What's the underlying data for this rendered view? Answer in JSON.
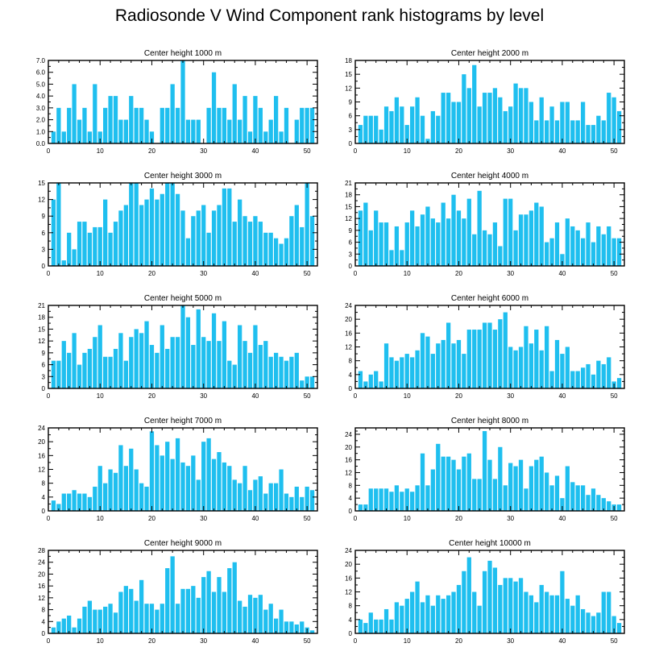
{
  "title": "Radiosonde V Wind Component rank histograms by level",
  "colors": {
    "bar": "#1fbfef",
    "axis": "#000000",
    "background": "#ffffff"
  },
  "chart_data": [
    {
      "type": "bar",
      "title": "Center height 1000 m",
      "xlabel": "",
      "ylabel": "",
      "xlim": [
        0,
        52
      ],
      "ylim": [
        0,
        7
      ],
      "xticks": [
        0,
        10,
        20,
        30,
        40,
        50
      ],
      "yticks": [
        0,
        1,
        2,
        3,
        4,
        5,
        6,
        7
      ],
      "ytick_labels": [
        "0.0",
        "1.0",
        "2.0",
        "3.0",
        "4.0",
        "5.0",
        "6.0",
        "7.0"
      ],
      "x": [
        1,
        2,
        3,
        4,
        5,
        6,
        7,
        8,
        9,
        10,
        11,
        12,
        13,
        14,
        15,
        16,
        17,
        18,
        19,
        20,
        21,
        22,
        23,
        24,
        25,
        26,
        27,
        28,
        29,
        30,
        31,
        32,
        33,
        34,
        35,
        36,
        37,
        38,
        39,
        40,
        41,
        42,
        43,
        44,
        45,
        46,
        47,
        48,
        49,
        50,
        51
      ],
      "values": [
        1,
        3,
        1,
        3,
        5,
        2,
        3,
        1,
        5,
        1,
        3,
        4,
        4,
        2,
        2,
        4,
        3,
        3,
        2,
        1,
        0,
        3,
        3,
        5,
        3,
        7,
        2,
        2,
        2,
        0,
        3,
        6,
        3,
        3,
        2,
        5,
        2,
        4,
        1,
        4,
        3,
        1,
        2,
        4,
        1,
        3,
        0,
        2,
        3,
        3,
        3
      ]
    },
    {
      "type": "bar",
      "title": "Center height 2000 m",
      "xlabel": "",
      "ylabel": "",
      "xlim": [
        0,
        52
      ],
      "ylim": [
        0,
        18
      ],
      "xticks": [
        0,
        10,
        20,
        30,
        40,
        50
      ],
      "yticks": [
        0,
        3,
        6,
        9,
        12,
        15,
        18
      ],
      "ytick_labels": [
        "0",
        "3",
        "6",
        "9",
        "12",
        "15",
        "18"
      ],
      "x": [
        1,
        2,
        3,
        4,
        5,
        6,
        7,
        8,
        9,
        10,
        11,
        12,
        13,
        14,
        15,
        16,
        17,
        18,
        19,
        20,
        21,
        22,
        23,
        24,
        25,
        26,
        27,
        28,
        29,
        30,
        31,
        32,
        33,
        34,
        35,
        36,
        37,
        38,
        39,
        40,
        41,
        42,
        43,
        44,
        45,
        46,
        47,
        48,
        49,
        50,
        51
      ],
      "values": [
        4,
        6,
        6,
        6,
        3,
        8,
        7,
        10,
        8,
        4,
        8,
        10,
        6,
        1,
        7,
        6,
        11,
        11,
        9,
        9,
        15,
        12,
        17,
        8,
        11,
        11,
        12,
        10,
        7,
        8,
        13,
        12,
        12,
        9,
        5,
        10,
        5,
        8,
        5,
        9,
        9,
        5,
        5,
        9,
        4,
        4,
        6,
        5,
        11,
        10,
        7
      ]
    },
    {
      "type": "bar",
      "title": "Center height 3000 m",
      "xlabel": "",
      "ylabel": "",
      "xlim": [
        0,
        52
      ],
      "ylim": [
        0,
        15
      ],
      "xticks": [
        0,
        10,
        20,
        30,
        40,
        50
      ],
      "yticks": [
        0,
        3,
        6,
        9,
        12,
        15
      ],
      "ytick_labels": [
        "0",
        "3",
        "6",
        "9",
        "12",
        "15"
      ],
      "x": [
        1,
        2,
        3,
        4,
        5,
        6,
        7,
        8,
        9,
        10,
        11,
        12,
        13,
        14,
        15,
        16,
        17,
        18,
        19,
        20,
        21,
        22,
        23,
        24,
        25,
        26,
        27,
        28,
        29,
        30,
        31,
        32,
        33,
        34,
        35,
        36,
        37,
        38,
        39,
        40,
        41,
        42,
        43,
        44,
        45,
        46,
        47,
        48,
        49,
        50,
        51
      ],
      "values": [
        12,
        15,
        1,
        6,
        3,
        8,
        8,
        6,
        7,
        7,
        12,
        6,
        8,
        10,
        11,
        15,
        15,
        11,
        12,
        14,
        12,
        13,
        15,
        15,
        13,
        10,
        5,
        9,
        10,
        11,
        6,
        10,
        11,
        14,
        14,
        8,
        12,
        9,
        8,
        9,
        8,
        6,
        6,
        5,
        4,
        5,
        9,
        11,
        7,
        15,
        9
      ]
    },
    {
      "type": "bar",
      "title": "Center height 4000 m",
      "xlabel": "",
      "ylabel": "",
      "xlim": [
        0,
        52
      ],
      "ylim": [
        0,
        21
      ],
      "xticks": [
        0,
        10,
        20,
        30,
        40,
        50
      ],
      "yticks": [
        0,
        3,
        6,
        9,
        12,
        15,
        18,
        21
      ],
      "ytick_labels": [
        "0",
        "3",
        "6",
        "9",
        "12",
        "15",
        "18",
        "21"
      ],
      "x": [
        1,
        2,
        3,
        4,
        5,
        6,
        7,
        8,
        9,
        10,
        11,
        12,
        13,
        14,
        15,
        16,
        17,
        18,
        19,
        20,
        21,
        22,
        23,
        24,
        25,
        26,
        27,
        28,
        29,
        30,
        31,
        32,
        33,
        34,
        35,
        36,
        37,
        38,
        39,
        40,
        41,
        42,
        43,
        44,
        45,
        46,
        47,
        48,
        49,
        50,
        51
      ],
      "values": [
        14,
        16,
        9,
        14,
        11,
        11,
        4,
        10,
        4,
        11,
        14,
        10,
        13,
        15,
        12,
        11,
        16,
        12,
        18,
        14,
        12,
        17,
        8,
        19,
        9,
        8,
        11,
        5,
        17,
        17,
        9,
        13,
        13,
        14,
        16,
        15,
        6,
        7,
        11,
        3,
        12,
        10,
        9,
        7,
        11,
        6,
        10,
        8,
        10,
        7,
        7
      ]
    },
    {
      "type": "bar",
      "title": "Center height 5000 m",
      "xlabel": "",
      "ylabel": "",
      "xlim": [
        0,
        52
      ],
      "ylim": [
        0,
        21
      ],
      "xticks": [
        0,
        10,
        20,
        30,
        40,
        50
      ],
      "yticks": [
        0,
        3,
        6,
        9,
        12,
        15,
        18,
        21
      ],
      "ytick_labels": [
        "0",
        "3",
        "6",
        "9",
        "12",
        "15",
        "18",
        "21"
      ],
      "x": [
        1,
        2,
        3,
        4,
        5,
        6,
        7,
        8,
        9,
        10,
        11,
        12,
        13,
        14,
        15,
        16,
        17,
        18,
        19,
        20,
        21,
        22,
        23,
        24,
        25,
        26,
        27,
        28,
        29,
        30,
        31,
        32,
        33,
        34,
        35,
        36,
        37,
        38,
        39,
        40,
        41,
        42,
        43,
        44,
        45,
        46,
        47,
        48,
        49,
        50,
        51
      ],
      "values": [
        7,
        7,
        12,
        9,
        14,
        6,
        9,
        10,
        13,
        16,
        8,
        8,
        10,
        14,
        7,
        13,
        15,
        14,
        17,
        11,
        9,
        16,
        10,
        13,
        13,
        21,
        18,
        11,
        20,
        13,
        12,
        19,
        12,
        17,
        7,
        6,
        16,
        12,
        9,
        16,
        11,
        12,
        8,
        9,
        8,
        7,
        8,
        9,
        2,
        3,
        3
      ]
    },
    {
      "type": "bar",
      "title": "Center height 6000 m",
      "xlabel": "",
      "ylabel": "",
      "xlim": [
        0,
        52
      ],
      "ylim": [
        0,
        24
      ],
      "xticks": [
        0,
        10,
        20,
        30,
        40,
        50
      ],
      "yticks": [
        0,
        4,
        8,
        12,
        16,
        20,
        24
      ],
      "ytick_labels": [
        "0",
        "4",
        "8",
        "12",
        "16",
        "20",
        "24"
      ],
      "x": [
        1,
        2,
        3,
        4,
        5,
        6,
        7,
        8,
        9,
        10,
        11,
        12,
        13,
        14,
        15,
        16,
        17,
        18,
        19,
        20,
        21,
        22,
        23,
        24,
        25,
        26,
        27,
        28,
        29,
        30,
        31,
        32,
        33,
        34,
        35,
        36,
        37,
        38,
        39,
        40,
        41,
        42,
        43,
        44,
        45,
        46,
        47,
        48,
        49,
        50,
        51
      ],
      "values": [
        5,
        2,
        4,
        5,
        2,
        13,
        9,
        8,
        9,
        10,
        9,
        11,
        16,
        15,
        10,
        13,
        14,
        19,
        13,
        14,
        10,
        17,
        17,
        17,
        19,
        19,
        17,
        20,
        22,
        12,
        11,
        12,
        18,
        13,
        17,
        11,
        18,
        5,
        14,
        10,
        12,
        5,
        5,
        6,
        7,
        4,
        8,
        7,
        9,
        2,
        3
      ]
    },
    {
      "type": "bar",
      "title": "Center height 7000 m",
      "xlabel": "",
      "ylabel": "",
      "xlim": [
        0,
        52
      ],
      "ylim": [
        0,
        24
      ],
      "xticks": [
        0,
        10,
        20,
        30,
        40,
        50
      ],
      "yticks": [
        0,
        4,
        8,
        12,
        16,
        20,
        24
      ],
      "ytick_labels": [
        "0",
        "4",
        "8",
        "12",
        "16",
        "20",
        "24"
      ],
      "x": [
        1,
        2,
        3,
        4,
        5,
        6,
        7,
        8,
        9,
        10,
        11,
        12,
        13,
        14,
        15,
        16,
        17,
        18,
        19,
        20,
        21,
        22,
        23,
        24,
        25,
        26,
        27,
        28,
        29,
        30,
        31,
        32,
        33,
        34,
        35,
        36,
        37,
        38,
        39,
        40,
        41,
        42,
        43,
        44,
        45,
        46,
        47,
        48,
        49,
        50,
        51
      ],
      "values": [
        3,
        2,
        5,
        5,
        6,
        5,
        5,
        4,
        7,
        13,
        8,
        12,
        11,
        19,
        13,
        18,
        12,
        8,
        7,
        23,
        19,
        16,
        20,
        15,
        21,
        14,
        13,
        16,
        9,
        20,
        21,
        15,
        17,
        14,
        13,
        9,
        8,
        13,
        6,
        9,
        10,
        5,
        8,
        8,
        12,
        5,
        4,
        7,
        4,
        7,
        6
      ]
    },
    {
      "type": "bar",
      "title": "Center height 8000 m",
      "xlabel": "",
      "ylabel": "",
      "xlim": [
        0,
        52
      ],
      "ylim": [
        0,
        26
      ],
      "xticks": [
        0,
        10,
        20,
        30,
        40,
        50
      ],
      "yticks": [
        0,
        4,
        8,
        12,
        16,
        20,
        24
      ],
      "ytick_labels": [
        "0",
        "4",
        "8",
        "12",
        "16",
        "20",
        "24"
      ],
      "x": [
        1,
        2,
        3,
        4,
        5,
        6,
        7,
        8,
        9,
        10,
        11,
        12,
        13,
        14,
        15,
        16,
        17,
        18,
        19,
        20,
        21,
        22,
        23,
        24,
        25,
        26,
        27,
        28,
        29,
        30,
        31,
        32,
        33,
        34,
        35,
        36,
        37,
        38,
        39,
        40,
        41,
        42,
        43,
        44,
        45,
        46,
        47,
        48,
        49,
        50,
        51
      ],
      "values": [
        2,
        2,
        7,
        7,
        7,
        7,
        6,
        8,
        6,
        7,
        6,
        8,
        18,
        8,
        13,
        21,
        17,
        17,
        16,
        13,
        17,
        18,
        10,
        10,
        25,
        16,
        10,
        20,
        8,
        15,
        14,
        16,
        7,
        14,
        16,
        17,
        12,
        8,
        11,
        4,
        14,
        9,
        8,
        8,
        5,
        7,
        5,
        4,
        3,
        2,
        2
      ]
    },
    {
      "type": "bar",
      "title": "Center height 9000 m",
      "xlabel": "",
      "ylabel": "",
      "xlim": [
        0,
        52
      ],
      "ylim": [
        0,
        28
      ],
      "xticks": [
        0,
        10,
        20,
        30,
        40,
        50
      ],
      "yticks": [
        0,
        4,
        8,
        12,
        16,
        20,
        24,
        28
      ],
      "ytick_labels": [
        "0",
        "4",
        "8",
        "12",
        "16",
        "20",
        "24",
        "28"
      ],
      "x": [
        1,
        2,
        3,
        4,
        5,
        6,
        7,
        8,
        9,
        10,
        11,
        12,
        13,
        14,
        15,
        16,
        17,
        18,
        19,
        20,
        21,
        22,
        23,
        24,
        25,
        26,
        27,
        28,
        29,
        30,
        31,
        32,
        33,
        34,
        35,
        36,
        37,
        38,
        39,
        40,
        41,
        42,
        43,
        44,
        45,
        46,
        47,
        48,
        49,
        50,
        51
      ],
      "values": [
        2,
        4,
        5,
        6,
        2,
        5,
        9,
        11,
        8,
        8,
        9,
        10,
        7,
        14,
        16,
        15,
        11,
        18,
        10,
        10,
        8,
        10,
        22,
        26,
        10,
        15,
        15,
        16,
        12,
        19,
        21,
        14,
        19,
        14,
        22,
        24,
        11,
        9,
        13,
        12,
        13,
        8,
        10,
        5,
        8,
        4,
        4,
        3,
        4,
        2,
        1
      ]
    },
    {
      "type": "bar",
      "title": "Center height 10000 m",
      "xlabel": "",
      "ylabel": "",
      "xlim": [
        0,
        52
      ],
      "ylim": [
        0,
        24
      ],
      "xticks": [
        0,
        10,
        20,
        30,
        40,
        50
      ],
      "yticks": [
        0,
        4,
        8,
        12,
        16,
        20,
        24
      ],
      "ytick_labels": [
        "0",
        "4",
        "8",
        "12",
        "16",
        "20",
        "24"
      ],
      "x": [
        1,
        2,
        3,
        4,
        5,
        6,
        7,
        8,
        9,
        10,
        11,
        12,
        13,
        14,
        15,
        16,
        17,
        18,
        19,
        20,
        21,
        22,
        23,
        24,
        25,
        26,
        27,
        28,
        29,
        30,
        31,
        32,
        33,
        34,
        35,
        36,
        37,
        38,
        39,
        40,
        41,
        42,
        43,
        44,
        45,
        46,
        47,
        48,
        49,
        50,
        51
      ],
      "values": [
        4,
        3,
        6,
        4,
        4,
        7,
        4,
        9,
        8,
        10,
        12,
        15,
        9,
        11,
        8,
        11,
        10,
        11,
        12,
        14,
        18,
        22,
        12,
        8,
        18,
        21,
        19,
        14,
        16,
        16,
        15,
        16,
        12,
        11,
        9,
        14,
        12,
        11,
        11,
        18,
        10,
        8,
        11,
        7,
        6,
        5,
        6,
        12,
        12,
        5,
        3
      ]
    }
  ]
}
